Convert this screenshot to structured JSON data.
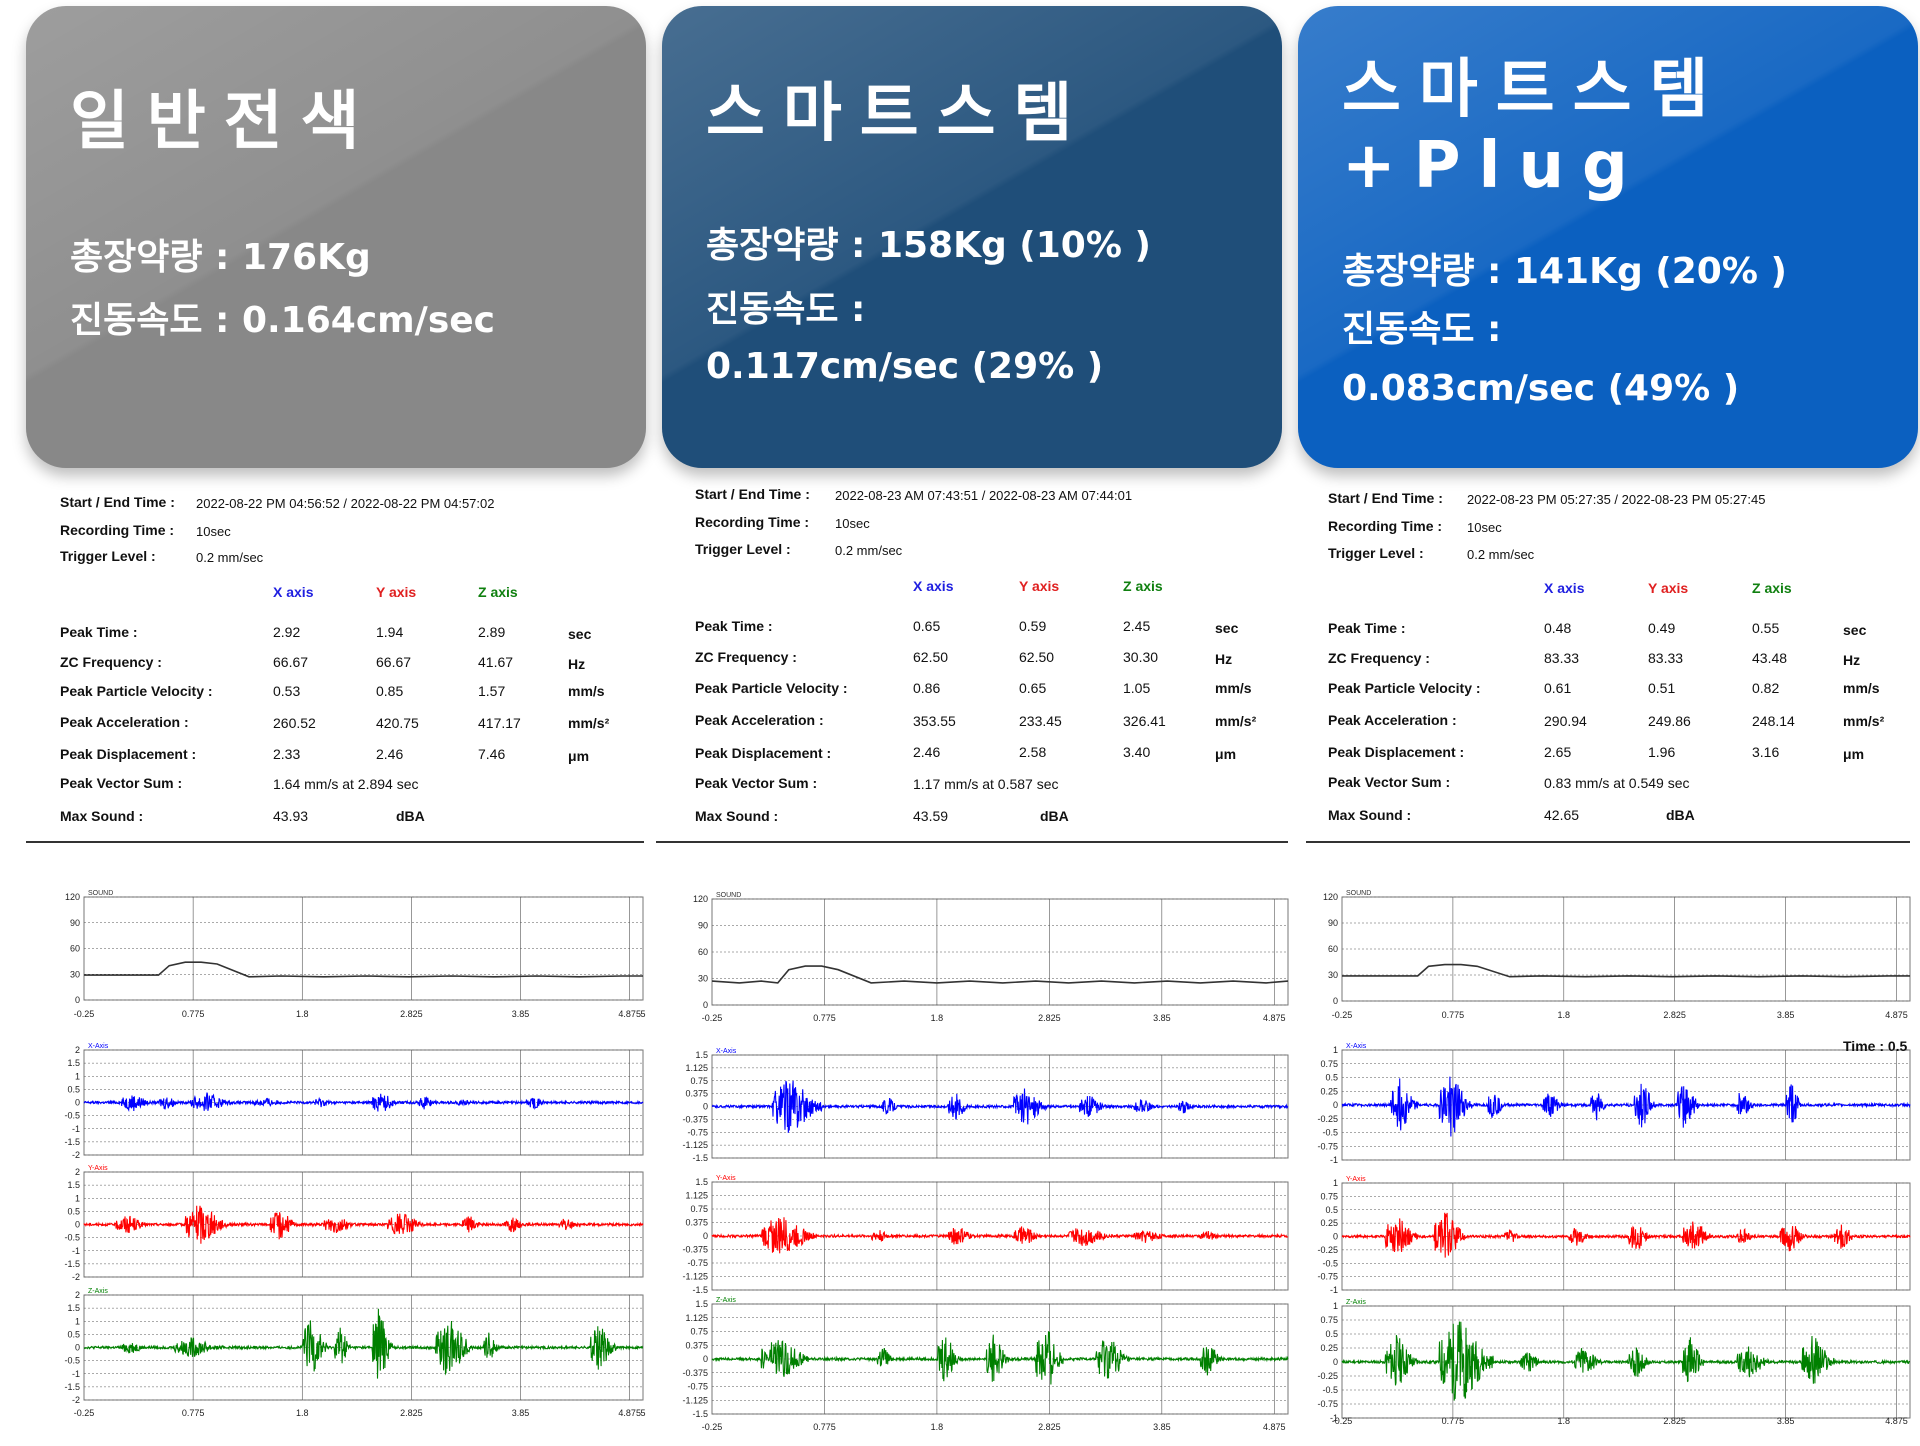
{
  "cards": [
    {
      "title": "일반전색",
      "line1": "총장약량 : 176Kg",
      "line2": "진동속도 : 0.164cm/sec",
      "line3": "",
      "color": "#888888"
    },
    {
      "title": "스마트스템",
      "line1": "총장약량 : 158Kg (10%        )",
      "line2": "진동속도 :",
      "line3": "0.117cm/sec (29%        )",
      "color": "#1f4e79"
    },
    {
      "title": "스마트스템\n+Plug",
      "line1": "총장약량 : 141Kg (20%        )",
      "line2": "진동속도 :",
      "line3": "0.083cm/sec (49%        )",
      "color": "#0b60c0"
    }
  ],
  "labels": {
    "start_end": "Start / End Time :",
    "recording": "Recording Time :",
    "trigger": "Trigger Level :",
    "x_axis": "X axis",
    "y_axis": "Y axis",
    "z_axis": "Z axis",
    "peak_time": "Peak Time :",
    "zc_freq": "ZC Frequency :",
    "ppv": "Peak Particle Velocity :",
    "peak_acc": "Peak Acceleration :",
    "peak_disp": "Peak Displacement :",
    "pvs": "Peak Vector Sum :",
    "max_sound": "Max Sound :",
    "units": [
      "sec",
      "Hz",
      "mm/s",
      "mm/s²",
      "μm"
    ],
    "dba": "dBA",
    "time_label": "Time : 0.5"
  },
  "reports": [
    {
      "start_end": "2022-08-22 PM 04:56:52 / 2022-08-22 PM 04:57:02",
      "recording": "10sec",
      "trigger": "0.2 mm/sec",
      "rows": [
        [
          "2.92",
          "1.94",
          "2.89"
        ],
        [
          "66.67",
          "66.67",
          "41.67"
        ],
        [
          "0.53",
          "0.85",
          "1.57"
        ],
        [
          "260.52",
          "420.75",
          "417.17"
        ],
        [
          "2.33",
          "2.46",
          "7.46"
        ]
      ],
      "pvs": "1.64 mm/s at 2.894 sec",
      "max_sound": "43.93"
    },
    {
      "start_end": "2022-08-23 AM 07:43:51 / 2022-08-23 AM 07:44:01",
      "recording": "10sec",
      "trigger": "0.2 mm/sec",
      "rows": [
        [
          "0.65",
          "0.59",
          "2.45"
        ],
        [
          "62.50",
          "62.50",
          "30.30"
        ],
        [
          "0.86",
          "0.65",
          "1.05"
        ],
        [
          "353.55",
          "233.45",
          "326.41"
        ],
        [
          "2.46",
          "2.58",
          "3.40"
        ]
      ],
      "pvs": "1.17 mm/s at 0.587 sec",
      "max_sound": "43.59"
    },
    {
      "start_end": "2022-08-23 PM 05:27:35 / 2022-08-23 PM 05:27:45",
      "recording": "10sec",
      "trigger": "0.2 mm/sec",
      "rows": [
        [
          "0.48",
          "0.49",
          "0.55"
        ],
        [
          "83.33",
          "83.33",
          "43.48"
        ],
        [
          "0.61",
          "0.51",
          "0.82"
        ],
        [
          "290.94",
          "249.86",
          "248.14"
        ],
        [
          "2.65",
          "1.96",
          "3.16"
        ]
      ],
      "pvs": "0.83 mm/s at 0.549 sec",
      "max_sound": "42.65"
    }
  ],
  "chart_data": [
    {
      "type": "line",
      "panels": [
        {
          "name": "SOUND",
          "yticks": [
            "120",
            "90",
            "60",
            "30",
            "0"
          ],
          "ylim": [
            0,
            120
          ],
          "x": [
            -0.25,
            0,
            0.3,
            0.45,
            0.55,
            0.7,
            0.85,
            1.0,
            1.3,
            1.6,
            2.0,
            2.4,
            2.8,
            3.2,
            3.6,
            4.0,
            4.4,
            4.8,
            5.0
          ],
          "values": [
            29,
            29,
            29,
            29,
            40,
            44,
            44,
            42,
            27,
            28,
            27,
            28,
            27,
            28,
            27,
            28,
            27,
            28,
            28
          ]
        },
        {
          "name": "X-Axis",
          "yticks": [
            "2",
            "1.5",
            "1",
            "0.5",
            "0",
            "-0.5",
            "-1",
            "-1.5",
            "-2"
          ],
          "ylim": [
            -2,
            2
          ],
          "bursts": [
            [
              0.1,
              0.3,
              0.35
            ],
            [
              0.45,
              0.2,
              0.3
            ],
            [
              0.75,
              0.4,
              0.4
            ],
            [
              1.35,
              0.3,
              0.2
            ],
            [
              1.9,
              0.2,
              0.2
            ],
            [
              2.45,
              0.25,
              0.45
            ],
            [
              2.9,
              0.15,
              0.3
            ],
            [
              3.25,
              0.15,
              0.15
            ],
            [
              3.9,
              0.2,
              0.25
            ]
          ]
        },
        {
          "name": "Y-Axis",
          "yticks": [
            "2",
            "1.5",
            "1",
            "0.5",
            "0",
            "-0.5",
            "-1",
            "-1.5",
            "-2"
          ],
          "ylim": [
            -2,
            2
          ],
          "bursts": [
            [
              0.05,
              0.3,
              0.4
            ],
            [
              0.7,
              0.4,
              0.85
            ],
            [
              1.5,
              0.25,
              0.6
            ],
            [
              2.0,
              0.3,
              0.4
            ],
            [
              2.6,
              0.35,
              0.5
            ],
            [
              3.3,
              0.2,
              0.35
            ],
            [
              3.7,
              0.2,
              0.3
            ],
            [
              4.2,
              0.2,
              0.25
            ]
          ]
        },
        {
          "name": "Z-Axis",
          "yticks": [
            "2",
            "1.5",
            "1",
            "0.5",
            "0",
            "-0.5",
            "-1",
            "-1.5",
            "-2"
          ],
          "ylim": [
            -2,
            2
          ],
          "bursts": [
            [
              0.1,
              0.25,
              0.25
            ],
            [
              0.6,
              0.45,
              0.4
            ],
            [
              1.8,
              0.25,
              1.2
            ],
            [
              2.1,
              0.15,
              0.9
            ],
            [
              2.45,
              0.2,
              1.57
            ],
            [
              3.05,
              0.35,
              1.2
            ],
            [
              3.5,
              0.15,
              0.6
            ],
            [
              4.5,
              0.25,
              0.9
            ]
          ]
        }
      ],
      "xticks": [
        "-0.25",
        "0.775",
        "1.8",
        "2.825",
        "3.85",
        "4.875",
        "5"
      ]
    },
    {
      "type": "line",
      "panels": [
        {
          "name": "SOUND",
          "yticks": [
            "120",
            "90",
            "60",
            "30",
            "0"
          ],
          "ylim": [
            0,
            120
          ],
          "x": [
            -0.25,
            0,
            0.2,
            0.35,
            0.45,
            0.6,
            0.75,
            0.9,
            1.2,
            1.5,
            1.8,
            2.1,
            2.4,
            2.7,
            3.0,
            3.3,
            3.6,
            3.9,
            4.2,
            4.5,
            4.8,
            5.0
          ],
          "values": [
            27,
            25,
            27,
            25,
            40,
            44,
            44,
            40,
            25,
            27,
            25,
            27,
            25,
            27,
            25,
            27,
            25,
            27,
            25,
            27,
            25,
            27
          ]
        },
        {
          "name": "X-Axis",
          "yticks": [
            "1.5",
            "1.125",
            "0.75",
            "0.375",
            "0",
            "-0.375",
            "-0.75",
            "-1.125",
            "-1.5"
          ],
          "ylim": [
            -1.5,
            1.5
          ],
          "bursts": [
            [
              0.3,
              0.45,
              0.86
            ],
            [
              1.3,
              0.15,
              0.3
            ],
            [
              1.9,
              0.2,
              0.4
            ],
            [
              2.5,
              0.3,
              0.6
            ],
            [
              3.1,
              0.25,
              0.35
            ],
            [
              3.6,
              0.2,
              0.25
            ],
            [
              4.0,
              0.15,
              0.2
            ]
          ]
        },
        {
          "name": "Y-Axis",
          "yticks": [
            "1.5",
            "1.125",
            "0.75",
            "0.375",
            "0",
            "-0.375",
            "-0.75",
            "-1.125",
            "-1.5"
          ],
          "ylim": [
            -1.5,
            1.5
          ],
          "bursts": [
            [
              0.2,
              0.5,
              0.6
            ],
            [
              1.2,
              0.2,
              0.2
            ],
            [
              1.9,
              0.25,
              0.3
            ],
            [
              2.5,
              0.25,
              0.3
            ],
            [
              3.0,
              0.4,
              0.3
            ],
            [
              3.6,
              0.3,
              0.2
            ],
            [
              4.2,
              0.2,
              0.15
            ]
          ]
        },
        {
          "name": "Z-Axis",
          "yticks": [
            "1.5",
            "1.125",
            "0.75",
            "0.375",
            "0",
            "-0.375",
            "-0.75",
            "-1.125",
            "-1.5"
          ],
          "ylim": [
            -1.5,
            1.5
          ],
          "bursts": [
            [
              0.2,
              0.45,
              0.6
            ],
            [
              1.25,
              0.15,
              0.4
            ],
            [
              1.8,
              0.2,
              0.8
            ],
            [
              2.25,
              0.2,
              0.7
            ],
            [
              2.7,
              0.25,
              1.05
            ],
            [
              3.25,
              0.3,
              0.7
            ],
            [
              4.2,
              0.2,
              0.5
            ]
          ]
        }
      ],
      "xticks": [
        "-0.25",
        "0.775",
        "1.8",
        "2.825",
        "3.85",
        "4.875"
      ]
    },
    {
      "type": "line",
      "panels": [
        {
          "name": "SOUND",
          "yticks": [
            "120",
            "90",
            "60",
            "30",
            "0"
          ],
          "ylim": [
            0,
            120
          ],
          "x": [
            -0.25,
            0,
            0.3,
            0.45,
            0.55,
            0.7,
            0.85,
            1.0,
            1.3,
            1.6,
            2.0,
            2.4,
            2.8,
            3.2,
            3.6,
            4.0,
            4.4,
            4.8,
            5.0
          ],
          "values": [
            29,
            29,
            29,
            29,
            40,
            42,
            42,
            40,
            28,
            29,
            28,
            29,
            28,
            29,
            28,
            29,
            28,
            29,
            29
          ]
        },
        {
          "name": "X-Axis",
          "yticks": [
            "1",
            "0.75",
            "0.5",
            "0.25",
            "0",
            "-0.25",
            "-0.5",
            "-0.75",
            "-1"
          ],
          "ylim": [
            -1,
            1
          ],
          "bursts": [
            [
              0.2,
              0.25,
              0.5
            ],
            [
              0.65,
              0.3,
              0.61
            ],
            [
              1.1,
              0.15,
              0.3
            ],
            [
              1.6,
              0.2,
              0.25
            ],
            [
              2.05,
              0.15,
              0.3
            ],
            [
              2.45,
              0.2,
              0.45
            ],
            [
              2.85,
              0.2,
              0.5
            ],
            [
              3.4,
              0.15,
              0.35
            ],
            [
              3.85,
              0.15,
              0.45
            ]
          ]
        },
        {
          "name": "Y-Axis",
          "yticks": [
            "1",
            "0.75",
            "0.5",
            "0.25",
            "0",
            "-0.25",
            "-0.5",
            "-0.75",
            "-1"
          ],
          "ylim": [
            -1,
            1
          ],
          "bursts": [
            [
              0.15,
              0.3,
              0.4
            ],
            [
              0.6,
              0.3,
              0.51
            ],
            [
              1.25,
              0.15,
              0.15
            ],
            [
              1.85,
              0.2,
              0.2
            ],
            [
              2.4,
              0.2,
              0.3
            ],
            [
              2.9,
              0.25,
              0.4
            ],
            [
              3.4,
              0.15,
              0.2
            ],
            [
              3.8,
              0.25,
              0.3
            ],
            [
              4.3,
              0.2,
              0.25
            ]
          ]
        },
        {
          "name": "Z-Axis",
          "yticks": [
            "1",
            "0.75",
            "0.5",
            "0.25",
            "0",
            "-0.25",
            "-0.5",
            "-0.75",
            "-1"
          ],
          "ylim": [
            -1,
            1
          ],
          "bursts": [
            [
              0.15,
              0.3,
              0.5
            ],
            [
              0.65,
              0.5,
              0.82
            ],
            [
              1.4,
              0.2,
              0.2
            ],
            [
              1.9,
              0.25,
              0.3
            ],
            [
              2.4,
              0.2,
              0.3
            ],
            [
              2.9,
              0.2,
              0.45
            ],
            [
              3.4,
              0.3,
              0.3
            ],
            [
              4.0,
              0.3,
              0.5
            ]
          ]
        }
      ],
      "xticks": [
        "-0.25",
        "0.775",
        "1.8",
        "2.825",
        "3.85",
        "4.875"
      ]
    }
  ],
  "colors": {
    "sound": "#333333",
    "x": "#0000ff",
    "y": "#ff0000",
    "z": "#008000"
  }
}
